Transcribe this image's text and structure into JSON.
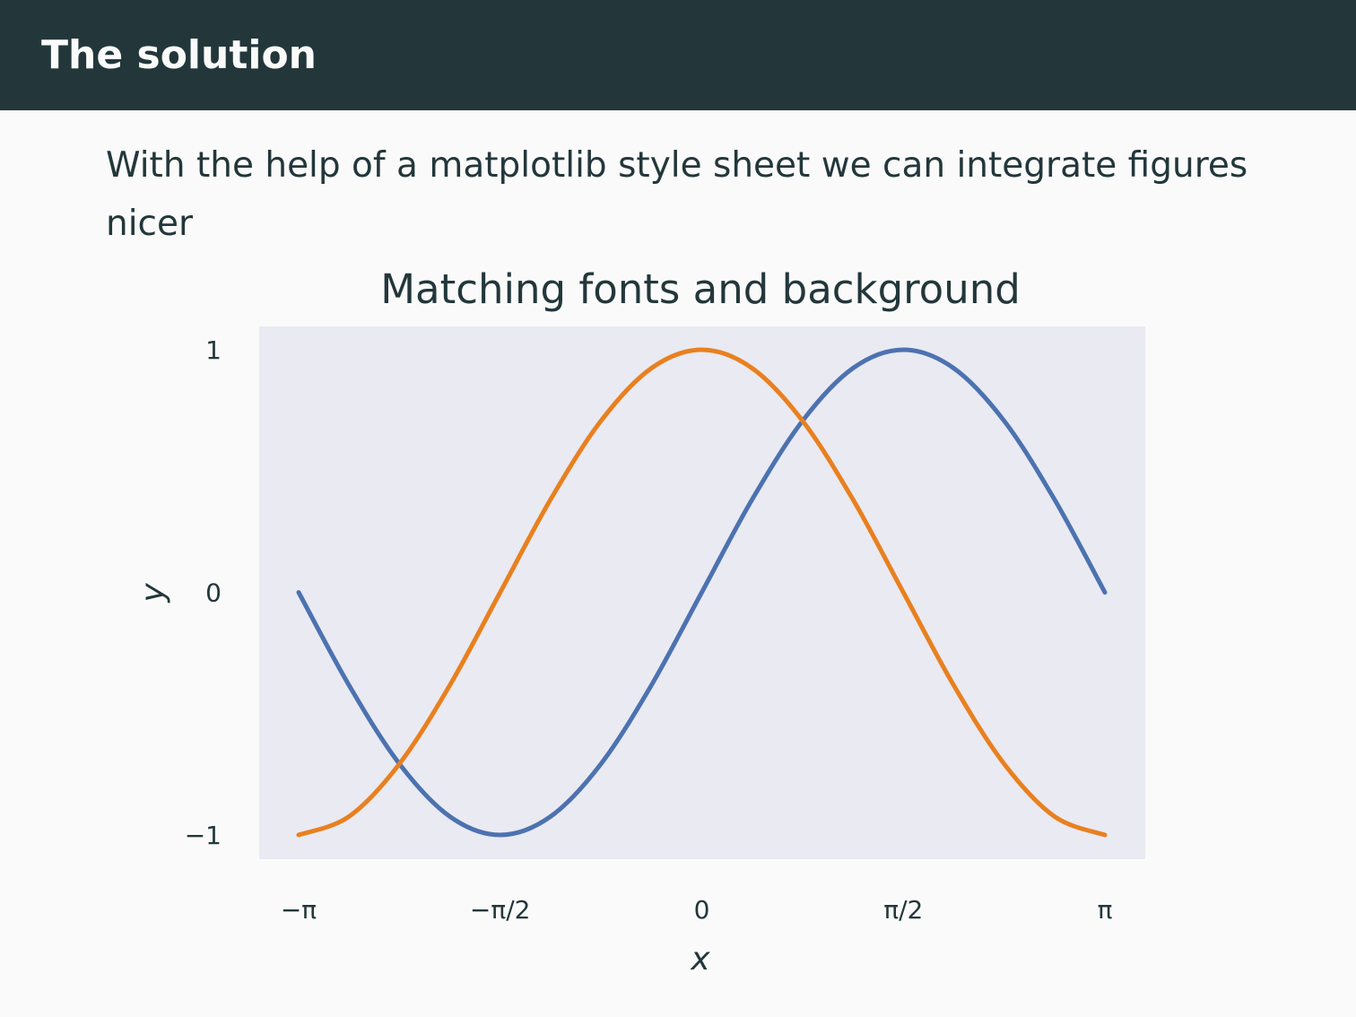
{
  "header": {
    "title": "The solution"
  },
  "body": {
    "text": "With the help of a matplotlib style sheet we can integrate figures nicer"
  },
  "colors": {
    "header_bg": "#23373b",
    "page_bg": "#fafafa",
    "plot_bg": "#eaeaf2",
    "text": "#23373b"
  },
  "chart_data": {
    "type": "line",
    "title": "Matching fonts and background",
    "xlabel": "x",
    "ylabel": "y",
    "xlim": [
      -3.14159,
      3.14159
    ],
    "ylim": [
      -1,
      1
    ],
    "grid": false,
    "legend": "none",
    "xticks": [
      {
        "value": -3.14159,
        "label": "−π"
      },
      {
        "value": -1.5708,
        "label": "−π/2"
      },
      {
        "value": 0,
        "label": "0"
      },
      {
        "value": 1.5708,
        "label": "π/2"
      },
      {
        "value": 3.14159,
        "label": "π"
      }
    ],
    "yticks": [
      {
        "value": 1,
        "label": "1"
      },
      {
        "value": 0,
        "label": "0"
      },
      {
        "value": -1,
        "label": "−1"
      }
    ],
    "x": [
      -3.1416,
      -2.7489,
      -2.3562,
      -1.9635,
      -1.5708,
      -1.1781,
      -0.7854,
      -0.3927,
      0,
      0.3927,
      0.7854,
      1.1781,
      1.5708,
      1.9635,
      2.3562,
      2.7489,
      3.1416
    ],
    "series": [
      {
        "color": "#4c72b0",
        "values": [
          0,
          -0.383,
          -0.707,
          -0.924,
          -1,
          -0.924,
          -0.707,
          -0.383,
          0,
          0.383,
          0.707,
          0.924,
          1,
          0.924,
          0.707,
          0.383,
          0
        ]
      },
      {
        "color": "#e8801f",
        "values": [
          -1,
          -0.924,
          -0.707,
          -0.383,
          0,
          0.383,
          0.707,
          0.924,
          1,
          0.924,
          0.707,
          0.383,
          0,
          -0.383,
          -0.707,
          -0.924,
          -1
        ]
      }
    ]
  }
}
